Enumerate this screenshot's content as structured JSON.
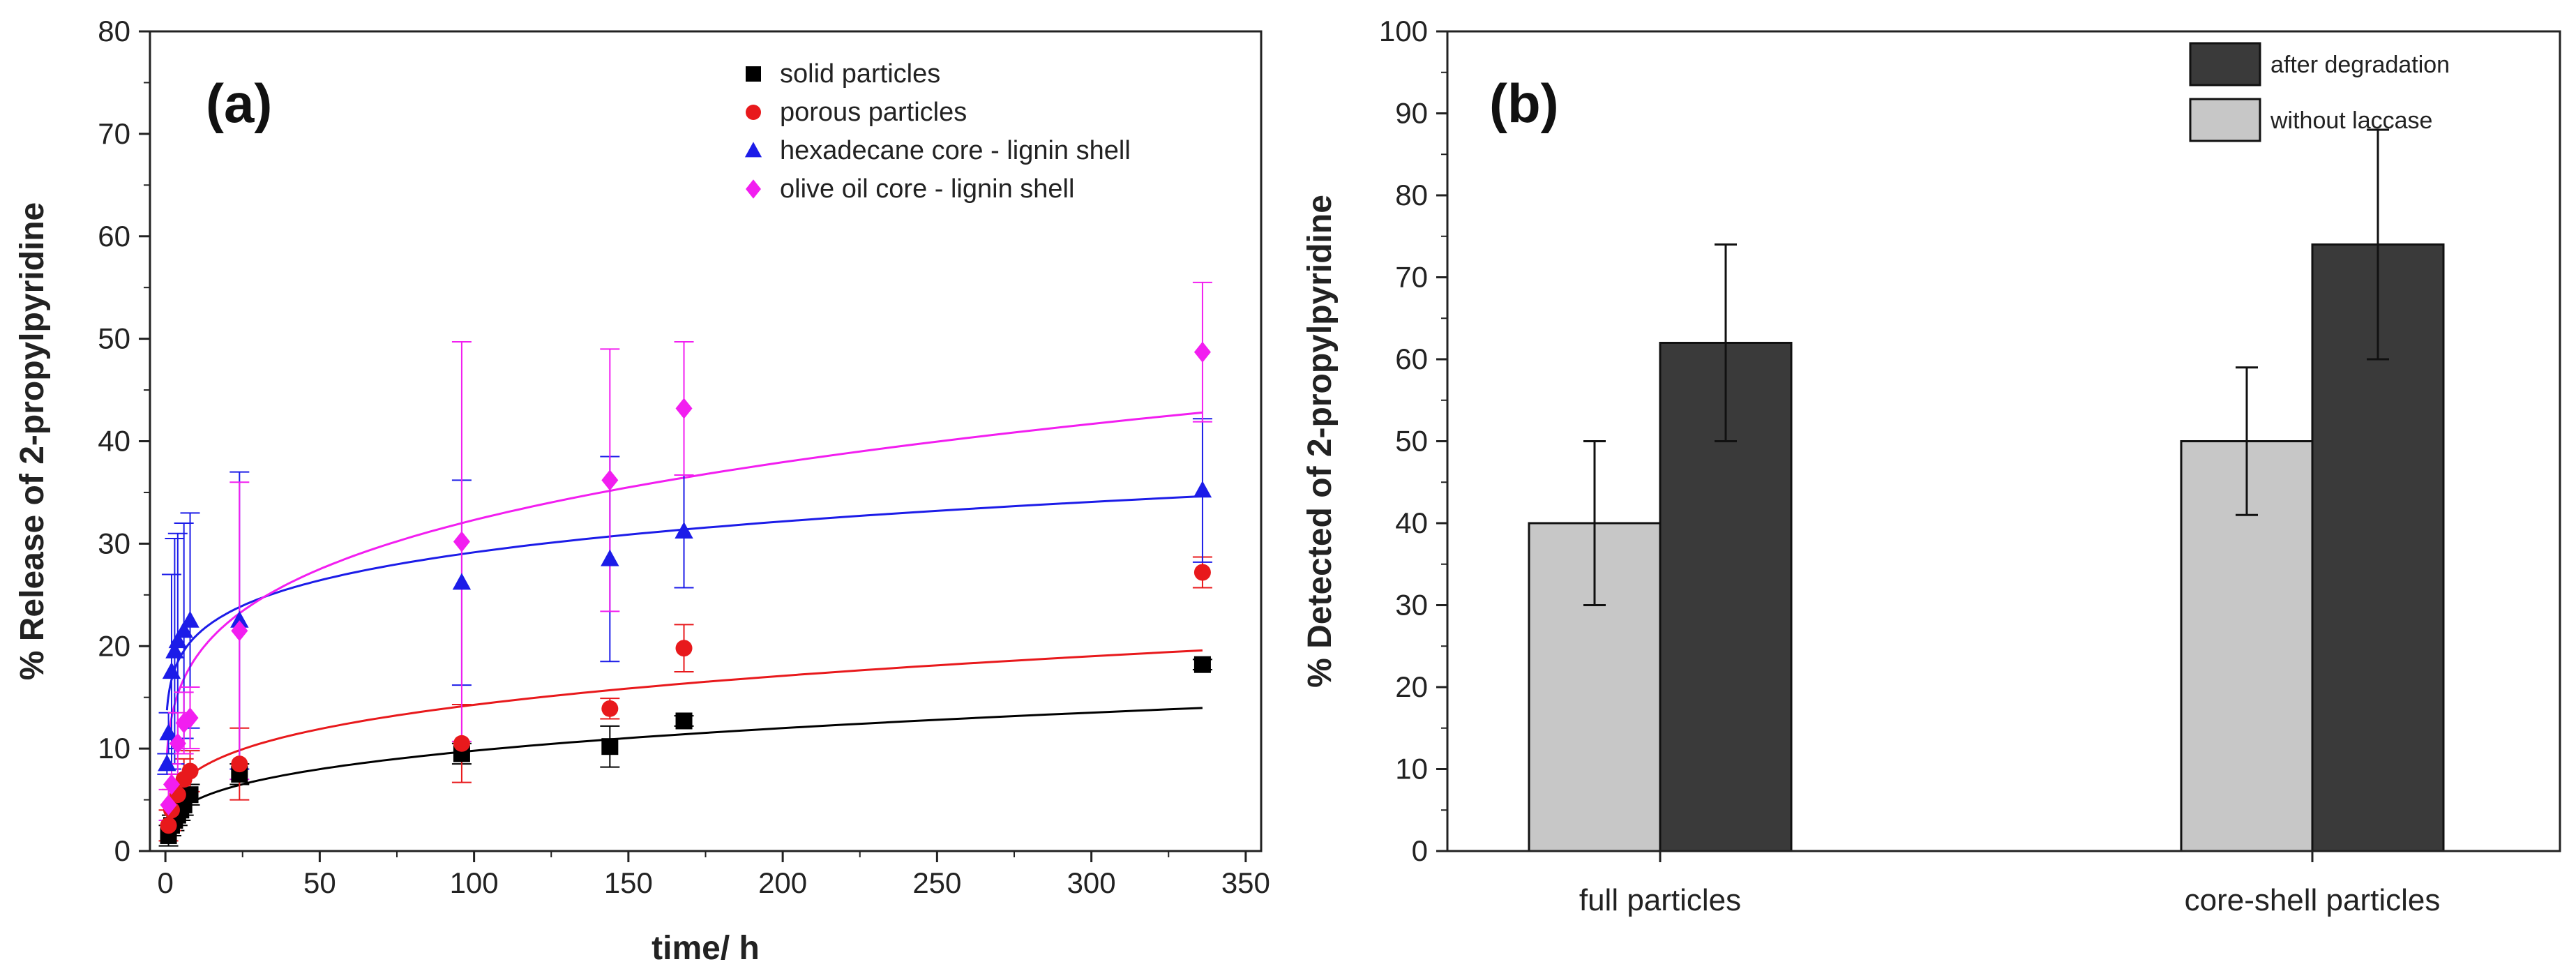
{
  "figure": {
    "panel_a_label": "(a)",
    "panel_b_label": "(b)"
  },
  "chart_data": [
    {
      "type": "scatter",
      "title": "",
      "xlabel": "time/ h",
      "ylabel": "% Release of 2-propylpyridine",
      "xlim": [
        -5,
        355
      ],
      "ylim": [
        0,
        80
      ],
      "xticks": [
        0,
        50,
        100,
        150,
        200,
        250,
        300,
        350
      ],
      "yticks": [
        0,
        10,
        20,
        30,
        40,
        50,
        60,
        70,
        80
      ],
      "legend_position": "top-right",
      "series": [
        {
          "name": "solid particles",
          "color": "#000000",
          "marker": "square",
          "points": [
            {
              "x": 1,
              "y": 1.5,
              "err": 1.0
            },
            {
              "x": 2,
              "y": 2.5,
              "err": 1.0
            },
            {
              "x": 3,
              "y": 3.0,
              "err": 1.0
            },
            {
              "x": 4,
              "y": 3.5,
              "err": 1.0
            },
            {
              "x": 5,
              "y": 4.0,
              "err": 1.0
            },
            {
              "x": 6,
              "y": 4.5,
              "err": 1.0
            },
            {
              "x": 8,
              "y": 5.5,
              "err": 1.0
            },
            {
              "x": 24,
              "y": 7.5,
              "err": 1.0
            },
            {
              "x": 96,
              "y": 9.5,
              "err": 1.0
            },
            {
              "x": 144,
              "y": 10.2,
              "err": 2.0
            },
            {
              "x": 168,
              "y": 12.7,
              "err": 0.5
            },
            {
              "x": 336,
              "y": 18.2,
              "err": 0.5
            }
          ],
          "fit": {
            "a": 2.54,
            "b": 0.293
          }
        },
        {
          "name": "porous particles",
          "color": "#e8191c",
          "marker": "circle",
          "points": [
            {
              "x": 1,
              "y": 2.5,
              "err": 1.5
            },
            {
              "x": 2,
              "y": 4.0,
              "err": 2.0
            },
            {
              "x": 4,
              "y": 5.5,
              "err": 2.0
            },
            {
              "x": 6,
              "y": 7.0,
              "err": 2.0
            },
            {
              "x": 8,
              "y": 7.8,
              "err": 2.0
            },
            {
              "x": 24,
              "y": 8.5,
              "err": 3.5
            },
            {
              "x": 96,
              "y": 10.5,
              "err": 3.8
            },
            {
              "x": 144,
              "y": 13.9,
              "err": 1.0
            },
            {
              "x": 168,
              "y": 19.8,
              "err": 2.3
            },
            {
              "x": 336,
              "y": 27.2,
              "err": 1.5
            }
          ],
          "fit": {
            "a": 4.29,
            "b": 0.261
          }
        },
        {
          "name": "hexadecane core - lignin shell",
          "color": "#1c1ce8",
          "marker": "triangle",
          "points": [
            {
              "x": 0.5,
              "y": 8.5,
              "err": 1.0
            },
            {
              "x": 1,
              "y": 11.5,
              "err": 2.0
            },
            {
              "x": 2,
              "y": 17.5,
              "err": 9.5
            },
            {
              "x": 3,
              "y": 19.5,
              "err": 11.0
            },
            {
              "x": 4,
              "y": 20.5,
              "err": 10.5
            },
            {
              "x": 6,
              "y": 21.5,
              "err": 10.5
            },
            {
              "x": 8,
              "y": 22.5,
              "err": 10.5
            },
            {
              "x": 24,
              "y": 22.5,
              "err": 14.5
            },
            {
              "x": 96,
              "y": 26.2,
              "err": 10.0
            },
            {
              "x": 144,
              "y": 28.5,
              "err": 10.0
            },
            {
              "x": 168,
              "y": 31.2,
              "err": 5.5
            },
            {
              "x": 336,
              "y": 35.2,
              "err": 7.0
            }
          ],
          "fit": {
            "a": 15.16,
            "b": 0.142
          }
        },
        {
          "name": "olive oil core - lignin shell",
          "color": "#f21ef0",
          "marker": "diamond",
          "points": [
            {
              "x": 1,
              "y": 4.5,
              "err": 1.5
            },
            {
              "x": 2,
              "y": 6.5,
              "err": 2.0
            },
            {
              "x": 4,
              "y": 10.5,
              "err": 3.0
            },
            {
              "x": 6,
              "y": 12.5,
              "err": 3.0
            },
            {
              "x": 8,
              "y": 13.0,
              "err": 3.0
            },
            {
              "x": 24,
              "y": 21.5,
              "err": 14.5
            },
            {
              "x": 96,
              "y": 30.2,
              "err": 19.5
            },
            {
              "x": 144,
              "y": 36.2,
              "err": 12.8
            },
            {
              "x": 168,
              "y": 43.2,
              "err": 6.5
            },
            {
              "x": 336,
              "y": 48.7,
              "err": 6.8
            }
          ],
          "fit": {
            "a": 11.1,
            "b": 0.232
          }
        }
      ]
    },
    {
      "type": "bar",
      "title": "",
      "xlabel": "",
      "ylabel": "% Detected of 2-propylpyridine",
      "ylim": [
        0,
        100
      ],
      "yticks": [
        0,
        10,
        20,
        30,
        40,
        50,
        60,
        70,
        80,
        90,
        100
      ],
      "categories": [
        "full particles",
        "core-shell particles"
      ],
      "legend_position": "top-right",
      "legend_order": [
        "after degradation",
        "without laccase"
      ],
      "series": [
        {
          "name": "without laccase",
          "color": "#c7c7c7",
          "values": [
            40,
            50
          ],
          "errors": [
            10,
            9
          ]
        },
        {
          "name": "after degradation",
          "color": "#3a3a3a",
          "values": [
            62,
            74
          ],
          "errors": [
            12,
            14
          ]
        }
      ]
    }
  ]
}
